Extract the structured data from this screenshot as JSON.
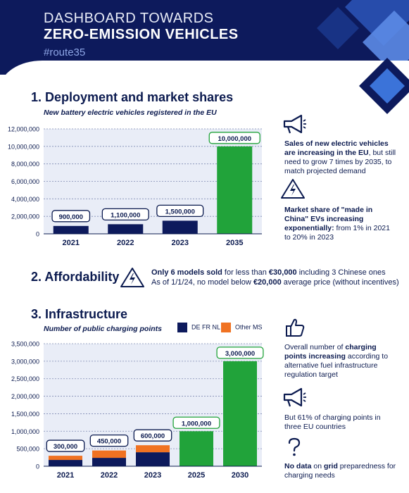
{
  "header": {
    "title_line1": "DASHBOARD TOWARDS",
    "title_line2": "ZERO-EMISSION VEHICLES",
    "hashtag": "#route35"
  },
  "colors": {
    "navy": "#0d1a5c",
    "green": "#21a33a",
    "orange": "#f07222",
    "accent_blue": "#3b73d9"
  },
  "section1": {
    "title": "1. Deployment and market shares",
    "subtitle": "New battery electric vehicles registered in the EU",
    "note1_bold": "Sales of new electric vehicles are increasing in the EU",
    "note1_rest": ", but still need to grow 7 times by 2035, to match projected demand",
    "note1_icon": "megaphone-icon",
    "note2_bold": "Market share of \"made in China\" EVs increasing exponentially:",
    "note2_rest": " from 1% in 2021 to 20% in 2023",
    "note2_icon": "warning-lightning-icon"
  },
  "section2": {
    "title": "2. Affordability",
    "icon": "lightning-warning-icon",
    "line1_pre": "Only 6 models sold",
    "line1_mid": " for less than ",
    "line1_price": "€30,000",
    "line1_post": " including 3 Chinese ones",
    "line2_pre": "As of 1/1/24, no model below ",
    "line2_price": "€20,000",
    "line2_post": " average price (without incentives)"
  },
  "section3": {
    "title": "3. Infrastructure",
    "subtitle": "Number of public charging points",
    "legend_de": "DE FR NL",
    "legend_other": "Other MS",
    "note1_pre": "Overall number of ",
    "note1_bold": "charging points increasing",
    "note1_rest": " according to alternative fuel infrastructure regulation target",
    "note1_icon": "thumbs-up-icon",
    "note2": "But 61% of charging points in three EU countries",
    "note2_icon": "megaphone-icon",
    "note3_bold": "No data",
    "note3_mid": " on ",
    "note3_bold2": "grid",
    "note3_rest": " preparedness for charging needs",
    "note3_icon": "question-mark-icon"
  },
  "chart_data": [
    {
      "type": "bar",
      "categories": [
        "2021",
        "2022",
        "2023",
        "2035"
      ],
      "values": [
        900000,
        1100000,
        1500000,
        10000000
      ],
      "labels": [
        "900,000",
        "1,100,000",
        "1,500,000",
        "10,000,000"
      ],
      "colors": [
        "#0d1a5c",
        "#0d1a5c",
        "#0d1a5c",
        "#21a33a"
      ],
      "ylim": [
        0,
        12000000
      ],
      "yticks": [
        "0",
        "2,000,000",
        "4,000,000",
        "6,000,000",
        "8,000,000",
        "10,000,000",
        "12,000,000"
      ],
      "ytick_values": [
        0,
        2000000,
        4000000,
        6000000,
        8000000,
        10000000,
        12000000
      ],
      "grid": true
    },
    {
      "type": "bar",
      "categories": [
        "2021",
        "2022",
        "2023",
        "2025",
        "2030"
      ],
      "series": [
        {
          "name": "DE FR NL",
          "values": [
            180000,
            240000,
            400000,
            null,
            null
          ],
          "color": "#0d1a5c"
        },
        {
          "name": "Other MS",
          "values": [
            120000,
            210000,
            200000,
            null,
            null
          ],
          "color": "#f07222"
        },
        {
          "values": [
            null,
            null,
            null,
            1000000,
            3000000
          ],
          "color": "#21a33a"
        }
      ],
      "totals": [
        300000,
        450000,
        600000,
        1000000,
        3000000
      ],
      "labels": [
        "300,000",
        "450,000",
        "600,000",
        "1,000,000",
        "3,000,000"
      ],
      "ylim": [
        0,
        3500000
      ],
      "yticks": [
        "0",
        "500,000",
        "1,000,000",
        "1,500,000",
        "2,000,000",
        "2,500,000",
        "3,000,000",
        "3,500,000"
      ],
      "ytick_values": [
        0,
        500000,
        1000000,
        1500000,
        2000000,
        2500000,
        3000000,
        3500000
      ],
      "grid": true
    }
  ]
}
